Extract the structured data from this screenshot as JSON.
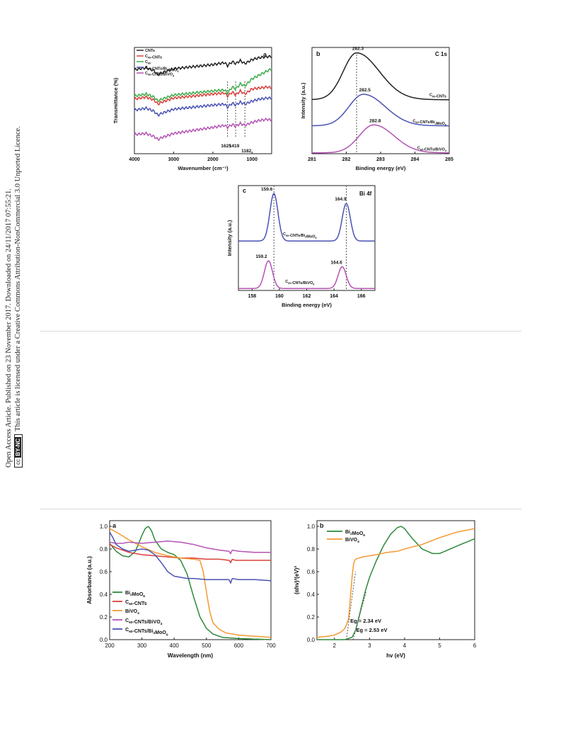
{
  "sidebar": {
    "line1": "Open Access Article. Published on 23 November 2017. Downloaded on 24/11/2017 07:55:21.",
    "line2": "This article is licensed under a Creative Commons Attribution-NonCommercial 3.0 Unported Licence.",
    "cc_badge": "cc",
    "cc_label": "BY-NC"
  },
  "colors": {
    "black": "#222222",
    "red": "#d8403a",
    "green": "#3cae4a",
    "blue": "#4a52b4",
    "magenta": "#b454b4",
    "orange": "#f39a32",
    "dkgreen": "#2c8a3a"
  },
  "chart_data": [
    {
      "id": "ftir",
      "type": "line",
      "panel_label": "a",
      "xlabel": "Wavenumber (cm⁻¹)",
      "ylabel": "Transmittance (%)",
      "xlim": [
        4000,
        500
      ],
      "xticks": [
        "4000",
        "3000",
        "2000",
        "1000"
      ],
      "legend": [
        "CNTs",
        "C60-CNTs",
        "C60",
        "C60-CNTs/Bi2MoO6",
        "C60-CNTs/BiVO4"
      ],
      "markers": [
        "1625",
        "1419",
        "1182"
      ],
      "series": [
        {
          "name": "CNTs",
          "color": "black",
          "x": [
            4000,
            3700,
            3500,
            3400,
            3300,
            3000,
            2500,
            2000,
            1700,
            1625,
            1500,
            1419,
            1300,
            1182,
            1000,
            800,
            600,
            500
          ],
          "y": [
            8.3,
            8.5,
            8.2,
            7.8,
            8.0,
            8.4,
            8.6,
            8.8,
            9.0,
            8.7,
            9.1,
            8.9,
            9.2,
            8.9,
            9.3,
            9.5,
            9.6,
            9.6
          ]
        },
        {
          "name": "C60-CNTs",
          "color": "red",
          "x": [
            4000,
            3700,
            3500,
            3400,
            3300,
            3000,
            2500,
            2000,
            1700,
            1625,
            1500,
            1419,
            1300,
            1182,
            1000,
            800,
            600,
            500
          ],
          "y": [
            5.4,
            5.6,
            5.3,
            4.9,
            5.1,
            5.5,
            5.7,
            5.9,
            6.0,
            5.7,
            6.1,
            5.8,
            6.2,
            5.9,
            6.4,
            6.5,
            6.6,
            6.5
          ]
        },
        {
          "name": "C60",
          "color": "green",
          "x": [
            4000,
            3700,
            3500,
            3400,
            3300,
            3000,
            2500,
            2000,
            1700,
            1625,
            1500,
            1419,
            1300,
            1182,
            1000,
            800,
            600,
            500
          ],
          "y": [
            5.7,
            5.9,
            5.6,
            5.2,
            5.4,
            5.8,
            6.0,
            6.2,
            6.3,
            6.0,
            6.6,
            6.4,
            6.9,
            6.7,
            7.4,
            7.8,
            8.2,
            8.4
          ]
        },
        {
          "name": "C60-CNTs/Bi2MoO6",
          "color": "blue",
          "x": [
            4000,
            3700,
            3500,
            3400,
            3300,
            3000,
            2500,
            2000,
            1700,
            1625,
            1500,
            1419,
            1300,
            1182,
            1000,
            800,
            600,
            500
          ],
          "y": [
            4.3,
            4.5,
            4.2,
            3.8,
            4.0,
            4.4,
            4.6,
            4.8,
            4.9,
            4.6,
            5.0,
            4.8,
            5.1,
            4.9,
            5.2,
            5.4,
            5.5,
            5.5
          ]
        },
        {
          "name": "C60-CNTs/BiVO4",
          "color": "magenta",
          "x": [
            4000,
            3700,
            3500,
            3400,
            3300,
            3000,
            2500,
            2000,
            1700,
            1625,
            1500,
            1419,
            1300,
            1182,
            1000,
            800,
            600,
            500
          ],
          "y": [
            1.9,
            2.0,
            1.7,
            1.4,
            1.6,
            2.0,
            2.3,
            2.6,
            2.8,
            2.6,
            2.9,
            2.7,
            3.0,
            2.8,
            3.1,
            3.3,
            3.4,
            3.3
          ]
        }
      ]
    },
    {
      "id": "c1s",
      "type": "line",
      "panel_label": "b",
      "element_label": "C 1s",
      "xlabel": "Binding energy (eV)",
      "ylabel": "Intensity (a.u.)",
      "xlim": [
        281,
        285
      ],
      "xticks": [
        "281",
        "282",
        "283",
        "284",
        "285"
      ],
      "series": [
        {
          "name": "C60-CNTs",
          "color": "black",
          "center": 282.3,
          "peak_label": "282.3",
          "baseline": 3.0,
          "height": 2.6,
          "width": 0.55,
          "skew": 1.7
        },
        {
          "name": "C60-CNTs/Bi2MoO6",
          "color": "blue",
          "center": 282.5,
          "peak_label": "282.5",
          "baseline": 1.55,
          "height": 1.75,
          "width": 0.6,
          "skew": 1.5
        },
        {
          "name": "C60-CNTs/BiVO4",
          "color": "magenta",
          "center": 282.8,
          "peak_label": "282.8",
          "baseline": 0.05,
          "height": 1.55,
          "width": 0.6,
          "skew": 1.4
        }
      ],
      "vline": 282.3
    },
    {
      "id": "bi4f",
      "type": "line",
      "panel_label": "c",
      "element_label": "Bi 4f",
      "xlabel": "Binding energy (eV)",
      "ylabel": "Intensity (a.u.)",
      "xlim": [
        157,
        167
      ],
      "xticks": [
        "158",
        "160",
        "162",
        "164",
        "166"
      ],
      "series": [
        {
          "name": "C60-CNTs/Bi2MoO6",
          "color": "blue",
          "peaks": [
            159.6,
            164.9
          ],
          "peak_labels": [
            "159.6",
            "164.9"
          ],
          "baseline": 2.5,
          "heights": [
            2.4,
            1.9
          ],
          "width": 0.42
        },
        {
          "name": "C60-CNTs/BiVO4",
          "color": "magenta",
          "peaks": [
            159.2,
            164.6
          ],
          "peak_labels": [
            "159.2",
            "164.6"
          ],
          "baseline": 0.1,
          "heights": [
            1.4,
            1.1
          ],
          "width": 0.42
        }
      ],
      "vlines": [
        159.6,
        164.9
      ]
    },
    {
      "id": "uvvis",
      "type": "line",
      "panel_label": "a",
      "xlabel": "Wavelength (nm)",
      "ylabel": "Absorbance (a.u.)",
      "xlim": [
        200,
        700
      ],
      "ylim": [
        0,
        1.05
      ],
      "xticks": [
        200,
        300,
        400,
        500,
        600,
        700
      ],
      "yticks": [
        "0.0",
        "0.2",
        "0.4",
        "0.6",
        "0.8",
        "1.0"
      ],
      "legend": [
        "Bi2MoO6",
        "C60-CNTs",
        "BiVO4",
        "C60-CNTs/BiVO4",
        "C60-CNTs/Bi2MoO6"
      ],
      "series": [
        {
          "name": "Bi2MoO6",
          "color": "dkgreen",
          "x": [
            200,
            220,
            240,
            260,
            280,
            300,
            310,
            320,
            330,
            340,
            360,
            380,
            400,
            420,
            440,
            460,
            480,
            500,
            520,
            550,
            600,
            650,
            700
          ],
          "y": [
            0.85,
            0.78,
            0.74,
            0.73,
            0.78,
            0.92,
            0.98,
            1.0,
            0.96,
            0.88,
            0.8,
            0.77,
            0.75,
            0.7,
            0.58,
            0.38,
            0.2,
            0.1,
            0.05,
            0.02,
            0.01,
            0.005,
            0.0
          ]
        },
        {
          "name": "C60-CNTs",
          "color": "red",
          "x": [
            200,
            220,
            240,
            260,
            280,
            300,
            340,
            380,
            420,
            460,
            500,
            540,
            570,
            575,
            580,
            590,
            620,
            660,
            700
          ],
          "y": [
            0.84,
            0.81,
            0.79,
            0.77,
            0.76,
            0.75,
            0.74,
            0.73,
            0.72,
            0.72,
            0.71,
            0.71,
            0.7,
            0.68,
            0.71,
            0.7,
            0.7,
            0.7,
            0.7
          ]
        },
        {
          "name": "BiVO4",
          "color": "orange",
          "x": [
            200,
            220,
            260,
            300,
            340,
            380,
            420,
            460,
            480,
            490,
            500,
            510,
            520,
            540,
            560,
            600,
            650,
            700
          ],
          "y": [
            0.98,
            0.95,
            0.88,
            0.82,
            0.77,
            0.74,
            0.72,
            0.71,
            0.7,
            0.6,
            0.42,
            0.25,
            0.15,
            0.09,
            0.06,
            0.04,
            0.03,
            0.02
          ]
        },
        {
          "name": "C60-CNTs/BiVO4",
          "color": "magenta",
          "x": [
            200,
            220,
            240,
            260,
            300,
            340,
            380,
            420,
            460,
            500,
            540,
            570,
            575,
            580,
            600,
            650,
            700
          ],
          "y": [
            0.86,
            0.85,
            0.85,
            0.86,
            0.85,
            0.86,
            0.87,
            0.86,
            0.84,
            0.81,
            0.79,
            0.78,
            0.76,
            0.79,
            0.78,
            0.77,
            0.77
          ]
        },
        {
          "name": "C60-CNTs/Bi2MoO6",
          "color": "blue",
          "x": [
            200,
            210,
            220,
            240,
            260,
            280,
            300,
            320,
            340,
            360,
            380,
            400,
            420,
            440,
            460,
            500,
            540,
            570,
            575,
            580,
            600,
            650,
            700
          ],
          "y": [
            0.95,
            0.9,
            0.84,
            0.8,
            0.78,
            0.79,
            0.8,
            0.79,
            0.75,
            0.68,
            0.6,
            0.56,
            0.55,
            0.54,
            0.54,
            0.53,
            0.53,
            0.53,
            0.5,
            0.54,
            0.53,
            0.53,
            0.52
          ]
        }
      ]
    },
    {
      "id": "tauc",
      "type": "line",
      "panel_label": "b",
      "xlabel": "hv (eV)",
      "ylabel": "(αhv)²(eV)²",
      "xlim": [
        1.5,
        6
      ],
      "ylim": [
        0,
        1.05
      ],
      "xticks": [
        2,
        3,
        4,
        5,
        6
      ],
      "yticks": [
        "0.0",
        "0.2",
        "0.4",
        "0.6",
        "0.8",
        "1.0"
      ],
      "legend": [
        "Bi2MoO6",
        "BiVO4"
      ],
      "annotations": [
        "Eg = 2.34 eV",
        "Eg = 2.53 eV"
      ],
      "series": [
        {
          "name": "Bi2MoO6",
          "color": "dkgreen",
          "x": [
            1.5,
            2.0,
            2.3,
            2.5,
            2.6,
            2.7,
            2.8,
            2.9,
            3.0,
            3.2,
            3.4,
            3.6,
            3.8,
            3.9,
            4.0,
            4.2,
            4.5,
            4.8,
            5.0,
            5.3,
            5.6,
            6.0
          ],
          "y": [
            0.0,
            0.0,
            0.0,
            0.02,
            0.08,
            0.2,
            0.33,
            0.45,
            0.55,
            0.7,
            0.83,
            0.93,
            0.99,
            1.0,
            0.98,
            0.9,
            0.8,
            0.76,
            0.76,
            0.8,
            0.84,
            0.89
          ]
        },
        {
          "name": "BiVO4",
          "color": "orange",
          "x": [
            1.5,
            1.8,
            2.0,
            2.2,
            2.3,
            2.4,
            2.45,
            2.5,
            2.55,
            2.6,
            2.7,
            2.8,
            3.0,
            3.2,
            3.5,
            3.8,
            4.0,
            4.5,
            5.0,
            5.5,
            6.0
          ],
          "y": [
            0.02,
            0.03,
            0.04,
            0.07,
            0.1,
            0.18,
            0.35,
            0.55,
            0.68,
            0.71,
            0.72,
            0.73,
            0.74,
            0.75,
            0.77,
            0.78,
            0.8,
            0.84,
            0.9,
            0.95,
            0.98
          ]
        }
      ]
    }
  ]
}
